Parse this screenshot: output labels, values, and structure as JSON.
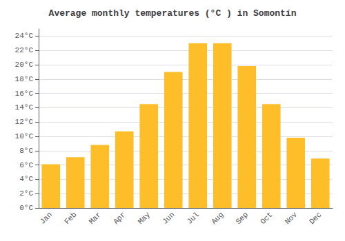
{
  "chart_data": {
    "type": "bar",
    "title": "Average monthly temperatures (°C ) in Somontín",
    "categories": [
      "Jan",
      "Feb",
      "Mar",
      "Apr",
      "May",
      "Jun",
      "Jul",
      "Aug",
      "Sep",
      "Oct",
      "Nov",
      "Dec"
    ],
    "values": [
      6.1,
      7.1,
      8.8,
      10.7,
      14.5,
      19.0,
      23.0,
      23.0,
      19.8,
      14.5,
      9.8,
      6.9
    ],
    "color": "#FDBE2A",
    "ylim": [
      0,
      25
    ],
    "yticks": [
      {
        "value": 0,
        "label": "0°C"
      },
      {
        "value": 2,
        "label": "2°C"
      },
      {
        "value": 4,
        "label": "4°C"
      },
      {
        "value": 6,
        "label": "6°C"
      },
      {
        "value": 8,
        "label": "8°C"
      },
      {
        "value": 10,
        "label": "10°C"
      },
      {
        "value": 12,
        "label": "12°C"
      },
      {
        "value": 14,
        "label": "14°C"
      },
      {
        "value": 16,
        "label": "16°C"
      },
      {
        "value": 18,
        "label": "18°C"
      },
      {
        "value": 20,
        "label": "20°C"
      },
      {
        "value": 22,
        "label": "22°C"
      },
      {
        "value": 24,
        "label": "24°C"
      }
    ],
    "grid": true
  }
}
